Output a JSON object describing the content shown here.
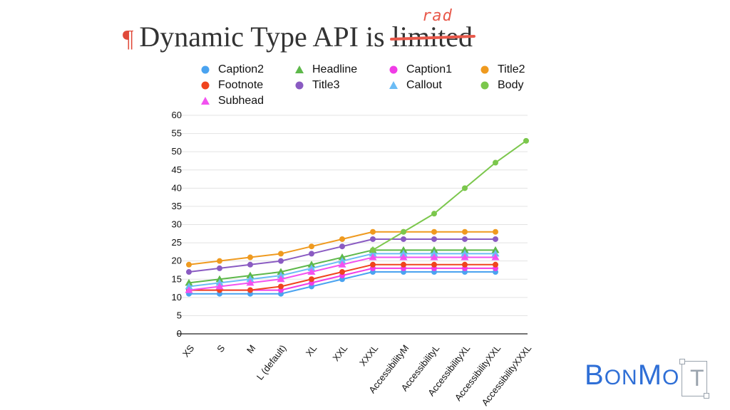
{
  "slide": {
    "pilcrow": "¶",
    "title_main": "Dynamic Type API is ",
    "title_struck": "limited",
    "title_insert": "rad"
  },
  "logo": {
    "text_big_b": "B",
    "text_small_on": "ON",
    "text_big_m": "M",
    "text_small_o": "O",
    "text_t": "T"
  },
  "chart_data": {
    "type": "line",
    "categories": [
      "XS",
      "S",
      "M",
      "L (default)",
      "XL",
      "XXL",
      "XXXL",
      "AccessibilityM",
      "AccessibilityL",
      "AccessibilityXL",
      "AccessibilityXXL",
      "AccessibilityXXXL"
    ],
    "ylim": [
      0,
      60
    ],
    "yticks": [
      0,
      5,
      10,
      15,
      20,
      25,
      30,
      35,
      40,
      45,
      50,
      55,
      60
    ],
    "grid": true,
    "legend_position": "top",
    "series": [
      {
        "name": "Caption2",
        "color": "#4aa3f0",
        "marker": "circle",
        "values": [
          11,
          11,
          11,
          11,
          13,
          15,
          17,
          17,
          17,
          17,
          17,
          null
        ]
      },
      {
        "name": "Headline",
        "color": "#5db84a",
        "marker": "triangle",
        "values": [
          14,
          15,
          16,
          17,
          19,
          21,
          23,
          23,
          23,
          23,
          23,
          null
        ]
      },
      {
        "name": "Caption1",
        "color": "#f03ce6",
        "marker": "circle",
        "values": [
          12,
          12,
          12,
          12,
          14,
          16,
          18,
          18,
          18,
          18,
          18,
          null
        ]
      },
      {
        "name": "Title2",
        "color": "#ef9a1f",
        "marker": "circle",
        "values": [
          19,
          20,
          21,
          22,
          24,
          26,
          28,
          28,
          28,
          28,
          28,
          null
        ]
      },
      {
        "name": "Footnote",
        "color": "#f0441e",
        "marker": "circle",
        "values": [
          12,
          12,
          12,
          13,
          15,
          17,
          19,
          19,
          19,
          19,
          19,
          null
        ]
      },
      {
        "name": "Title3",
        "color": "#8a5bc2",
        "marker": "circle",
        "values": [
          17,
          18,
          19,
          20,
          22,
          24,
          26,
          26,
          26,
          26,
          26,
          null
        ]
      },
      {
        "name": "Callout",
        "color": "#6bbcf5",
        "marker": "triangle",
        "values": [
          13,
          14,
          15,
          16,
          18,
          20,
          22,
          22,
          22,
          22,
          22,
          null
        ]
      },
      {
        "name": "Body",
        "color": "#7bc74c",
        "marker": "circle",
        "values": [
          null,
          null,
          null,
          null,
          null,
          null,
          23,
          28,
          33,
          40,
          47,
          53
        ]
      },
      {
        "name": "Subhead",
        "color": "#f252f0",
        "marker": "triangle",
        "values": [
          12,
          13,
          14,
          15,
          17,
          19,
          21,
          21,
          21,
          21,
          21,
          null
        ]
      }
    ]
  }
}
